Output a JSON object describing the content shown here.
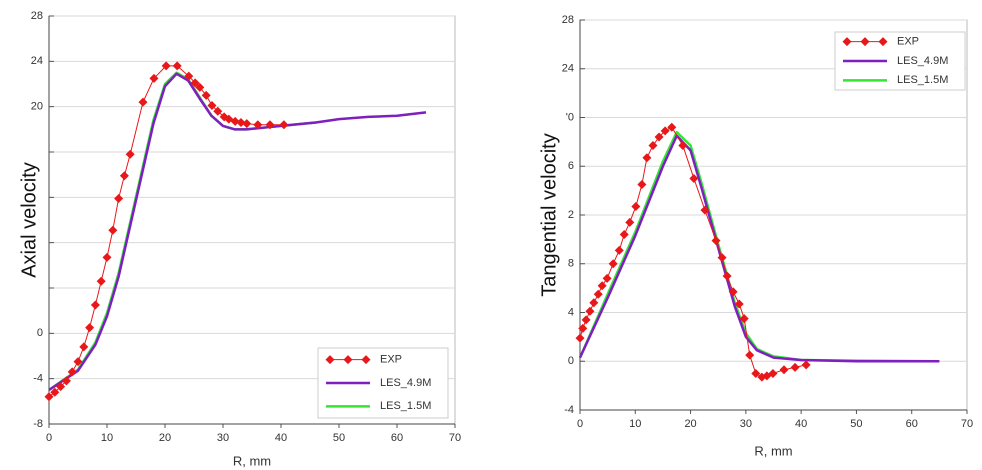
{
  "chart_data": [
    {
      "type": "line",
      "xlabel": "R, mm",
      "ylabel": "Axial velocity",
      "xlim": [
        0,
        70
      ],
      "xticks": [
        0,
        10,
        20,
        30,
        40,
        50,
        60,
        70
      ],
      "ylim": [
        -8,
        28
      ],
      "yticks": [
        -8,
        -4,
        0,
        {
          "value": 4,
          "label": null
        },
        {
          "value": 8,
          "label": null
        },
        {
          "value": 12,
          "label": null
        },
        {
          "value": 16,
          "label": null
        },
        20,
        24,
        28
      ],
      "grid": true,
      "legend": "lower right",
      "series": [
        {
          "name": "EXP",
          "color": "#e8181a",
          "marker": "diamond",
          "x": [
            0,
            1,
            2,
            3,
            4,
            5,
            6,
            7,
            8,
            9,
            10,
            11,
            12,
            13,
            14,
            16.2,
            18.1,
            20.2,
            22.1,
            24.1,
            25.2,
            26,
            27.1,
            28.1,
            29.1,
            30.2,
            31,
            32.1,
            33.1,
            34.1,
            36,
            38.1,
            40.5
          ],
          "values": [
            -5.6,
            -5.2,
            -4.7,
            -4.2,
            -3.4,
            -2.5,
            -1.2,
            0.5,
            2.5,
            4.6,
            6.7,
            9.1,
            11.9,
            13.9,
            15.8,
            20.4,
            22.5,
            23.6,
            23.6,
            22.7,
            22.1,
            21.7,
            21,
            20.1,
            19.6,
            19.1,
            18.9,
            18.7,
            18.6,
            18.5,
            18.4,
            18.4,
            18.4
          ]
        },
        {
          "name": "LES_4.9M",
          "color": "#7f1fbf",
          "x": [
            0,
            5,
            8,
            10,
            12,
            14,
            16,
            18,
            20,
            22,
            24,
            26,
            28,
            30,
            32,
            34,
            38,
            42,
            46,
            50,
            55,
            60,
            65
          ],
          "values": [
            -5,
            -3.3,
            -1,
            1.5,
            5,
            9.5,
            14,
            18.5,
            21.8,
            22.9,
            22.3,
            20.7,
            19.2,
            18.3,
            18,
            18,
            18.2,
            18.4,
            18.6,
            18.9,
            19.1,
            19.2,
            19.5
          ]
        },
        {
          "name": "LES_1.5M",
          "color": "#33e633",
          "x": [
            0,
            5,
            8,
            10,
            12,
            14,
            16,
            18,
            20,
            22,
            24,
            26,
            28,
            30,
            32,
            34,
            38,
            42,
            46
          ],
          "values": [
            -5,
            -3.2,
            -0.8,
            1.8,
            5.3,
            9.8,
            14.3,
            18.8,
            22,
            23,
            22.4,
            20.8,
            19.2,
            18.3,
            18,
            18,
            18.2,
            18.4,
            18.6
          ]
        }
      ]
    },
    {
      "type": "line",
      "xlabel": "R, mm",
      "ylabel": "Tangential velocity",
      "xlim": [
        0,
        70
      ],
      "xticks": [
        0,
        10,
        20,
        30,
        40,
        50,
        60,
        70
      ],
      "ylim": [
        -4,
        28
      ],
      "yticks": [
        -4,
        0,
        4,
        8,
        {
          "value": 12,
          "label": "2"
        },
        {
          "value": 16,
          "label": "6"
        },
        {
          "value": 20,
          "label": "'0"
        },
        24,
        28
      ],
      "grid": true,
      "legend": "upper right",
      "series": [
        {
          "name": "EXP",
          "color": "#e8181a",
          "marker": "diamond",
          "x": [
            0,
            0.5,
            1.1,
            1.8,
            2.5,
            3.3,
            4,
            4.9,
            6,
            7.1,
            8,
            9,
            10.1,
            11.2,
            12.1,
            13.2,
            14.3,
            15.4,
            16.6,
            18.6,
            20.6,
            22.6,
            24.6,
            25.7,
            26.6,
            27.7,
            28.8,
            29.7,
            30.7,
            31.8,
            32.9,
            33.8,
            34.9,
            36.9,
            38.9,
            40.9
          ],
          "values": [
            1.9,
            2.7,
            3.4,
            4.1,
            4.8,
            5.5,
            6.2,
            6.8,
            8,
            9.1,
            10.4,
            11.4,
            12.7,
            14.5,
            16.7,
            17.7,
            18.4,
            18.9,
            19.2,
            17.7,
            15,
            12.4,
            9.9,
            8.5,
            7,
            5.7,
            4.7,
            3.5,
            0.5,
            -1,
            -1.3,
            -1.2,
            -1,
            -0.7,
            -0.5,
            -0.3
          ]
        },
        {
          "name": "LES_4.9M",
          "color": "#7f1fbf",
          "x": [
            0,
            5,
            10,
            15,
            17.5,
            20,
            22,
            25,
            28,
            30,
            32,
            35,
            40,
            50,
            65
          ],
          "values": [
            0.3,
            5.2,
            10.3,
            16,
            18.5,
            17.3,
            14.2,
            9.3,
            4.5,
            2,
            0.9,
            0.3,
            0.1,
            0,
            0
          ]
        },
        {
          "name": "LES_1.5M",
          "color": "#33e633",
          "x": [
            0,
            5,
            10,
            15,
            17.5,
            20,
            22,
            25,
            28,
            30,
            32,
            35,
            40,
            50,
            65
          ],
          "values": [
            0.3,
            5.5,
            10.6,
            16.4,
            18.8,
            17.7,
            14.6,
            9.6,
            4.8,
            2.3,
            1,
            0.4,
            0.1,
            0.05,
            0
          ]
        }
      ]
    }
  ]
}
